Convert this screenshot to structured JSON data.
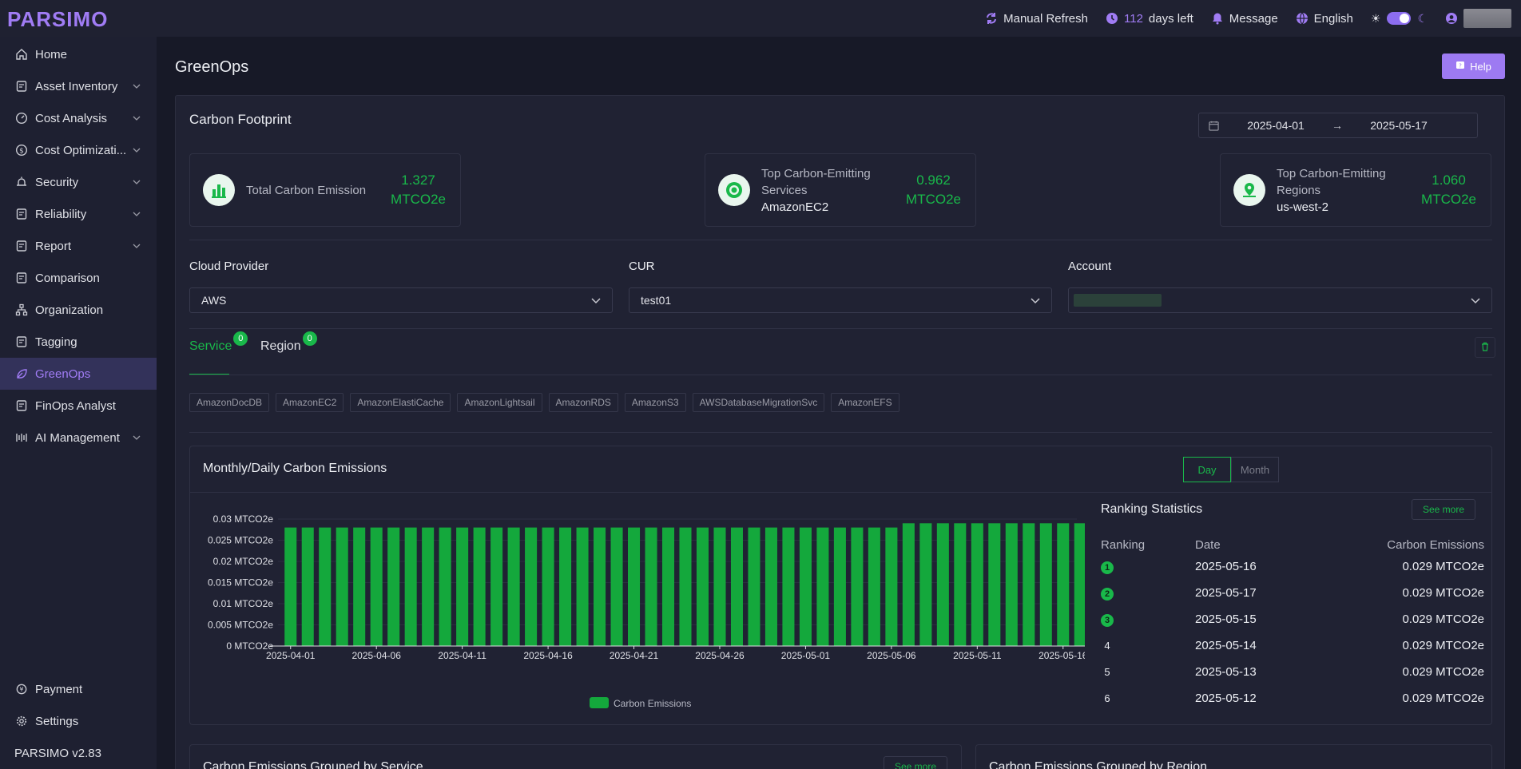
{
  "app": {
    "logo": "PARSIMO"
  },
  "topbar": {
    "manual_refresh": "Manual Refresh",
    "days_value": "112",
    "days_suffix": "days left",
    "message": "Message",
    "language": "English"
  },
  "sidebar": {
    "items": [
      {
        "label": "Home",
        "icon": "home-icon",
        "has_children": false
      },
      {
        "label": "Asset Inventory",
        "icon": "inventory-icon",
        "has_children": true
      },
      {
        "label": "Cost Analysis",
        "icon": "dashboard-icon",
        "has_children": true
      },
      {
        "label": "Cost Optimizati...",
        "icon": "dollar-icon",
        "has_children": true
      },
      {
        "label": "Security",
        "icon": "alarm-icon",
        "has_children": true
      },
      {
        "label": "Reliability",
        "icon": "reliability-icon",
        "has_children": true
      },
      {
        "label": "Report",
        "icon": "report-icon",
        "has_children": true
      },
      {
        "label": "Comparison",
        "icon": "comparison-icon",
        "has_children": false
      },
      {
        "label": "Organization",
        "icon": "organization-icon",
        "has_children": false
      },
      {
        "label": "Tagging",
        "icon": "tag-icon",
        "has_children": false
      },
      {
        "label": "GreenOps",
        "icon": "leaf-icon",
        "has_children": false,
        "active": true
      },
      {
        "label": "FinOps Analyst",
        "icon": "analyst-icon",
        "has_children": false
      },
      {
        "label": "AI Management",
        "icon": "ai-icon",
        "has_children": true
      }
    ],
    "bottom": [
      {
        "label": "Payment",
        "icon": "payment-icon"
      },
      {
        "label": "Settings",
        "icon": "gear-icon"
      }
    ],
    "version": "PARSIMO v2.83"
  },
  "page": {
    "title": "GreenOps",
    "help": "Help"
  },
  "footprint": {
    "title": "Carbon Footprint",
    "date_start": "2025-04-01",
    "date_end": "2025-05-17",
    "date_sep": "→",
    "stats": [
      {
        "label": "Total Carbon Emission",
        "sub": "",
        "value": "1.327",
        "unit": "MTCO2e"
      },
      {
        "label": "Top Carbon-Emitting Services",
        "sub": "AmazonEC2",
        "value": "0.962",
        "unit": "MTCO2e"
      },
      {
        "label": "Top Carbon-Emitting Regions",
        "sub": "us-west-2",
        "value": "1.060",
        "unit": "MTCO2e"
      }
    ]
  },
  "filters": {
    "cloud_provider_label": "Cloud Provider",
    "cloud_provider_value": "AWS",
    "cur_label": "CUR",
    "cur_value": "test01",
    "account_label": "Account"
  },
  "tabs": [
    {
      "label": "Service",
      "count": "0",
      "active": true
    },
    {
      "label": "Region",
      "count": "0",
      "active": false
    }
  ],
  "services": [
    "AmazonDocDB",
    "AmazonEC2",
    "AmazonElastiCache",
    "AmazonLightsail",
    "AmazonRDS",
    "AmazonS3",
    "AWSDatabaseMigrationSvc",
    "AmazonEFS"
  ],
  "emissions": {
    "title": "Monthly/Daily Carbon Emissions",
    "day": "Day",
    "month": "Month"
  },
  "colors": {
    "accent": "#a07cf4",
    "green": "#19b84a",
    "bar": "#14a83c"
  },
  "chart_data": {
    "type": "bar",
    "series": [
      {
        "name": "Carbon Emissions",
        "values": [
          0.028,
          0.028,
          0.028,
          0.028,
          0.028,
          0.028,
          0.028,
          0.028,
          0.028,
          0.028,
          0.028,
          0.028,
          0.028,
          0.028,
          0.028,
          0.028,
          0.028,
          0.028,
          0.028,
          0.028,
          0.028,
          0.028,
          0.028,
          0.028,
          0.028,
          0.028,
          0.028,
          0.028,
          0.028,
          0.028,
          0.028,
          0.028,
          0.028,
          0.028,
          0.028,
          0.028,
          0.029,
          0.029,
          0.029,
          0.029,
          0.029,
          0.029,
          0.029,
          0.029,
          0.029,
          0.029,
          0.029
        ]
      }
    ],
    "start_date": "2025-04-01",
    "x_tick_labels": [
      "2025-04-01",
      "2025-04-06",
      "2025-04-11",
      "2025-04-16",
      "2025-04-21",
      "2025-04-26",
      "2025-05-01",
      "2025-05-06",
      "2025-05-11",
      "2025-05-16"
    ],
    "y_tick_labels": [
      "0 MTCO2e",
      "0.005 MTCO2e",
      "0.01 MTCO2e",
      "0.015 MTCO2e",
      "0.02 MTCO2e",
      "0.025 MTCO2e",
      "0.03 MTCO2e"
    ],
    "ylim": [
      0,
      0.03
    ],
    "legend": "bottom"
  },
  "ranking": {
    "title": "Ranking Statistics",
    "see_more": "See more",
    "headers": {
      "rank": "Ranking",
      "date": "Date",
      "value": "Carbon Emissions"
    },
    "rows": [
      {
        "rank": "1",
        "date": "2025-05-16",
        "value": "0.029 MTCO2e"
      },
      {
        "rank": "2",
        "date": "2025-05-17",
        "value": "0.029 MTCO2e"
      },
      {
        "rank": "3",
        "date": "2025-05-15",
        "value": "0.029 MTCO2e"
      },
      {
        "rank": "4",
        "date": "2025-05-14",
        "value": "0.029 MTCO2e"
      },
      {
        "rank": "5",
        "date": "2025-05-13",
        "value": "0.029 MTCO2e"
      },
      {
        "rank": "6",
        "date": "2025-05-12",
        "value": "0.029 MTCO2e"
      }
    ]
  },
  "grouped": {
    "by_service": "Carbon Emissions Grouped by Service",
    "by_region": "Carbon Emissions Grouped by Region",
    "see_more": "See more"
  }
}
